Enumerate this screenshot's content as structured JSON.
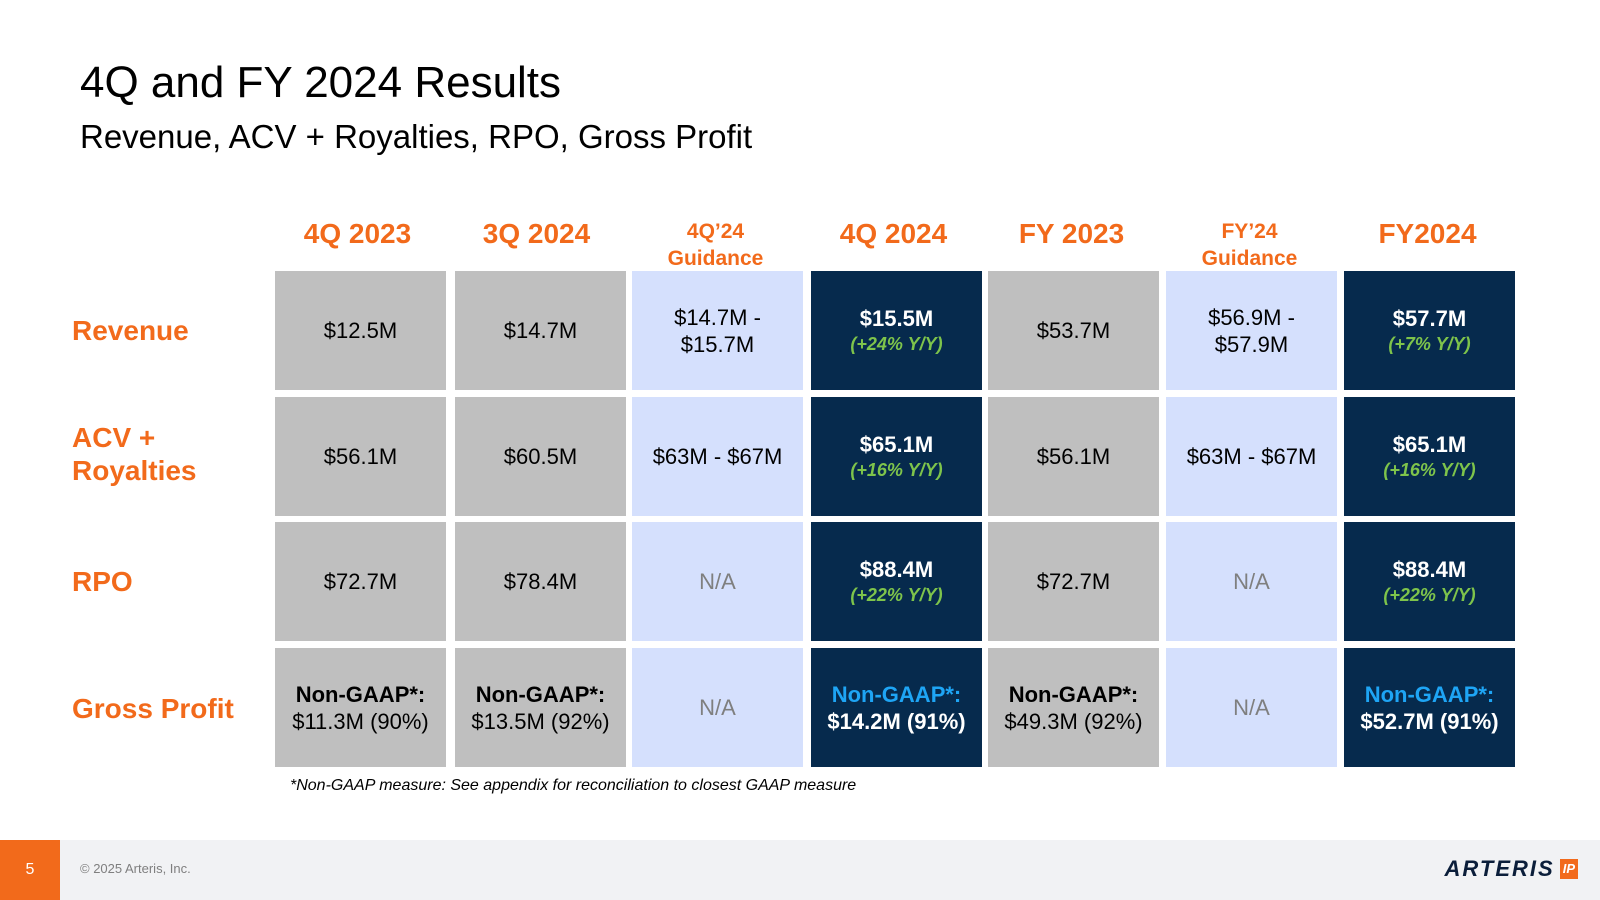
{
  "slide": {
    "title": "4Q and FY 2024 Results",
    "subtitle": "Revenue, ACV + Royalties, RPO, Gross Profit"
  },
  "columns": [
    {
      "label": "4Q 2023",
      "style": "gray"
    },
    {
      "label": "3Q 2024",
      "style": "gray"
    },
    {
      "label": "4Q’24 Guidance",
      "label_line1": "4Q’24",
      "label_line2": "Guidance",
      "style": "light"
    },
    {
      "label": "4Q 2024",
      "style": "dark"
    },
    {
      "label": "FY 2023",
      "style": "gray"
    },
    {
      "label": "FY’24 Guidance",
      "label_line1": "FY’24",
      "label_line2": "Guidance",
      "style": "light"
    },
    {
      "label": "FY2024",
      "style": "dark"
    }
  ],
  "rows": {
    "revenue": {
      "label": "Revenue",
      "cells": [
        {
          "value": "$12.5M"
        },
        {
          "value": "$14.7M"
        },
        {
          "line1": "$14.7M -",
          "line2": "$15.7M"
        },
        {
          "value": "$15.5M",
          "change": "(+24% Y/Y)"
        },
        {
          "value": "$53.7M"
        },
        {
          "line1": "$56.9M -",
          "line2": "$57.9M"
        },
        {
          "value": "$57.7M",
          "change": "(+7% Y/Y)"
        }
      ]
    },
    "acv": {
      "label_line1": "ACV +",
      "label_line2": "Royalties",
      "cells": [
        {
          "value": "$56.1M"
        },
        {
          "value": "$60.5M"
        },
        {
          "value": "$63M - $67M"
        },
        {
          "value": "$65.1M",
          "change": "(+16% Y/Y)"
        },
        {
          "value": "$56.1M"
        },
        {
          "value": "$63M - $67M"
        },
        {
          "value": "$65.1M",
          "change": "(+16% Y/Y)"
        }
      ]
    },
    "rpo": {
      "label": "RPO",
      "cells": [
        {
          "value": "$72.7M"
        },
        {
          "value": "$78.4M"
        },
        {
          "value": "N/A"
        },
        {
          "value": "$88.4M",
          "change": "(+22% Y/Y)"
        },
        {
          "value": "$72.7M"
        },
        {
          "value": "N/A"
        },
        {
          "value": "$88.4M",
          "change": "(+22% Y/Y)"
        }
      ]
    },
    "gross_profit": {
      "label": "Gross Profit",
      "cells": [
        {
          "label": "Non-GAAP*:",
          "value": "$11.3M (90%)"
        },
        {
          "label": "Non-GAAP*:",
          "value": "$13.5M (92%)"
        },
        {
          "value": "N/A"
        },
        {
          "label": "Non-GAAP*:",
          "value": "$14.2M (91%)"
        },
        {
          "label": "Non-GAAP*:",
          "value": "$49.3M (92%)"
        },
        {
          "value": "N/A"
        },
        {
          "label": "Non-GAAP*:",
          "value": "$52.7M (91%)"
        }
      ]
    }
  },
  "footnote": "*Non-GAAP measure: See appendix for reconciliation to closest GAAP measure",
  "footer": {
    "page_number": "5",
    "copyright": "© 2025 Arteris, Inc.",
    "logo_text": "ARTERIS",
    "logo_badge": "IP"
  },
  "colors": {
    "accent_orange": "#f26a1b",
    "cell_gray": "#bfbfbf",
    "cell_light_blue": "#d5e0fd",
    "cell_dark_navy": "#062a4d",
    "growth_green": "#7ec44b",
    "non_gaap_blue": "#1ea5f5"
  }
}
